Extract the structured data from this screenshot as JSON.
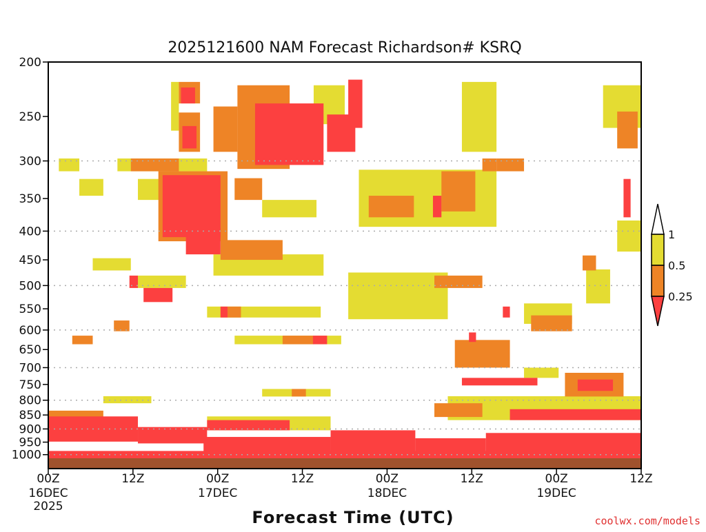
{
  "chart_data": {
    "type": "heatmap",
    "title": "2025121600 NAM Forecast Richardson# KSRQ",
    "xlabel": "Forecast Time (UTC)",
    "ylabel": "",
    "xlim_hours": [
      0,
      84
    ],
    "ylim_hpa": [
      200,
      1040
    ],
    "y_scale": "log",
    "y_ticks": [
      200,
      250,
      300,
      350,
      400,
      450,
      500,
      550,
      600,
      650,
      700,
      750,
      800,
      850,
      900,
      950,
      1000
    ],
    "y_tick_labels": [
      "200",
      "250",
      "300",
      "350",
      "400",
      "450",
      "500",
      "550",
      "600",
      "650",
      "700",
      "750",
      "800",
      "850",
      "900",
      "950",
      "1000"
    ],
    "gridlines_hpa": [
      300,
      400,
      500,
      600,
      700,
      800,
      900,
      1000
    ],
    "x_ticks": [
      {
        "hour": 0,
        "label": "00Z",
        "date": "16DEC",
        "year": "2025"
      },
      {
        "hour": 12,
        "label": "12Z"
      },
      {
        "hour": 24,
        "label": "00Z",
        "date": "17DEC"
      },
      {
        "hour": 36,
        "label": "12Z"
      },
      {
        "hour": 48,
        "label": "00Z",
        "date": "18DEC"
      },
      {
        "hour": 60,
        "label": "12Z"
      },
      {
        "hour": 72,
        "label": "00Z",
        "date": "19DEC"
      },
      {
        "hour": 84,
        "label": "12Z"
      }
    ],
    "legend": {
      "placement": "right",
      "labels": [
        "1",
        "0.5",
        "0.25"
      ],
      "categories": [
        {
          "name": "Ri < 0.25",
          "color": "#fc4040"
        },
        {
          "name": "0.25 - 0.5",
          "color": "#ee8426"
        },
        {
          "name": "0.5 - 1",
          "color": "#e4dc32"
        },
        {
          "name": "> 1",
          "color": "#ffffff"
        }
      ]
    },
    "surface": {
      "color": "#a0522d",
      "pressure_hpa": 1015
    },
    "cells_format": "[hour_start, hour_end, p_top_hPa, p_bottom_hPa, category(0=red,1=orange,2=yellow)]",
    "cells": [
      [
        17.4,
        18.5,
        217,
        265,
        2
      ],
      [
        18.5,
        21.5,
        217,
        237,
        1
      ],
      [
        18.8,
        20.8,
        222,
        237,
        0
      ],
      [
        18.5,
        21.5,
        246,
        289,
        1
      ],
      [
        19,
        21,
        260,
        285,
        0
      ],
      [
        23.4,
        26.8,
        240,
        289,
        1
      ],
      [
        26.8,
        34.2,
        220,
        310,
        1
      ],
      [
        29.3,
        39,
        237,
        305,
        0
      ],
      [
        37.6,
        42,
        220,
        258,
        2
      ],
      [
        39.5,
        43.5,
        248,
        289,
        0
      ],
      [
        42.5,
        44.5,
        215,
        262,
        0
      ],
      [
        1.5,
        4.4,
        297,
        313,
        2
      ],
      [
        4.4,
        7.8,
        323,
        346,
        2
      ],
      [
        9.8,
        22.5,
        297,
        313,
        2
      ],
      [
        11.7,
        18.5,
        297,
        313,
        1
      ],
      [
        12.7,
        18.5,
        323,
        352,
        2
      ],
      [
        15.6,
        25.4,
        313,
        417,
        1
      ],
      [
        16.2,
        24.4,
        318,
        410,
        0
      ],
      [
        19.5,
        24.4,
        395,
        440,
        0
      ],
      [
        24.4,
        33.2,
        415,
        450,
        1
      ],
      [
        23.4,
        39,
        440,
        480,
        2
      ],
      [
        26.4,
        30.3,
        322,
        352,
        1
      ],
      [
        30.3,
        38,
        352,
        378,
        2
      ],
      [
        12.7,
        19.5,
        480,
        505,
        2
      ],
      [
        11.5,
        12.7,
        480,
        505,
        0
      ],
      [
        13.5,
        17.6,
        505,
        535,
        0
      ],
      [
        6.3,
        11.7,
        447,
        470,
        2
      ],
      [
        22.5,
        38.6,
        545,
        570,
        2
      ],
      [
        24.4,
        25.4,
        545,
        570,
        0
      ],
      [
        25.4,
        27.3,
        545,
        570,
        1
      ],
      [
        26.4,
        41.5,
        614,
        636,
        2
      ],
      [
        33.2,
        37.6,
        614,
        636,
        1
      ],
      [
        37.5,
        39.5,
        614,
        636,
        0
      ],
      [
        3.4,
        6.3,
        614,
        636,
        1
      ],
      [
        9.3,
        11.5,
        577,
        603,
        1
      ],
      [
        44,
        63.5,
        311,
        393,
        2
      ],
      [
        45.4,
        51.8,
        346,
        378,
        1
      ],
      [
        55.7,
        60.5,
        313,
        369,
        1
      ],
      [
        54.5,
        55.7,
        346,
        378,
        0
      ],
      [
        42.5,
        56.6,
        474,
        574,
        2
      ],
      [
        54.7,
        61.5,
        480,
        505,
        1
      ],
      [
        58.6,
        63.5,
        217,
        289,
        2
      ],
      [
        61.5,
        63.5,
        297,
        313,
        1
      ],
      [
        63.5,
        67.4,
        297,
        313,
        1
      ],
      [
        57.6,
        65.4,
        625,
        700,
        1
      ],
      [
        59.6,
        60.6,
        606,
        630,
        0
      ],
      [
        67.4,
        74.2,
        538,
        585,
        2
      ],
      [
        68.4,
        74.2,
        565,
        603,
        1
      ],
      [
        64.4,
        65.4,
        545,
        570,
        0
      ],
      [
        67.4,
        72.3,
        700,
        730,
        2
      ],
      [
        58.6,
        69.3,
        730,
        753,
        0
      ],
      [
        73.2,
        81.5,
        715,
        788,
        1
      ],
      [
        75,
        80,
        735,
        770,
        0
      ],
      [
        78.6,
        84,
        220,
        262,
        2
      ],
      [
        80.6,
        83.5,
        245,
        285,
        1
      ],
      [
        81.5,
        82.5,
        323,
        378,
        0
      ],
      [
        80.6,
        84,
        383,
        435,
        2
      ],
      [
        75.7,
        77.6,
        442,
        470,
        1
      ],
      [
        76.2,
        79.6,
        468,
        538,
        2
      ],
      [
        56.6,
        84,
        787,
        868,
        2
      ],
      [
        54.7,
        61.5,
        810,
        857,
        1
      ],
      [
        65.4,
        84,
        830,
        868,
        0
      ],
      [
        0,
        12.7,
        855,
        948,
        0
      ],
      [
        0,
        7.8,
        835,
        860,
        1
      ],
      [
        12.7,
        22.5,
        893,
        955,
        0
      ],
      [
        22.5,
        40,
        855,
        905,
        2
      ],
      [
        22.5,
        34.2,
        868,
        905,
        0
      ],
      [
        30.3,
        40,
        764,
        788,
        2
      ],
      [
        34.5,
        36.5,
        764,
        788,
        1
      ],
      [
        7.8,
        14.6,
        787,
        810,
        2
      ],
      [
        40,
        52,
        905,
        990,
        0
      ],
      [
        52,
        62,
        935,
        995,
        0
      ],
      [
        62,
        84,
        915,
        1000,
        0
      ],
      [
        22,
        40,
        930,
        990,
        0
      ],
      [
        0,
        84,
        985,
        1015,
        0
      ]
    ]
  },
  "footer": {
    "watermark": "coolwx.com/models"
  }
}
